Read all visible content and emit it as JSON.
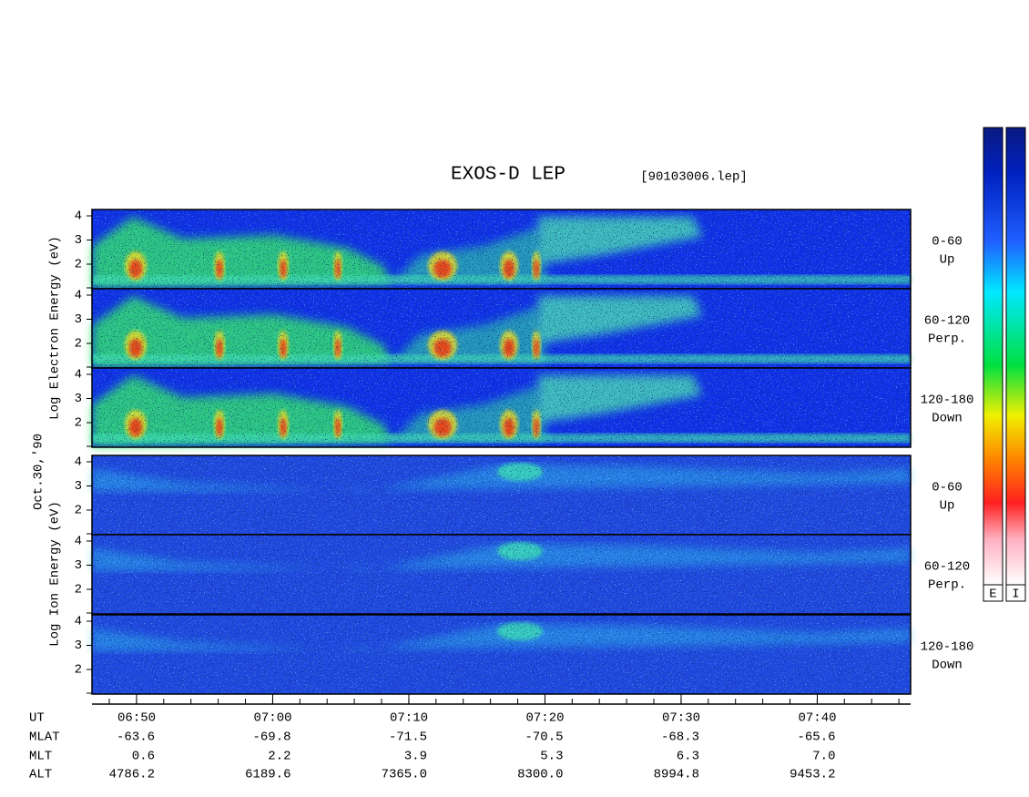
{
  "header": {
    "title": "EXOS-D LEP",
    "file": "[90103006.lep]"
  },
  "date_label": "Oct.30,'90",
  "energy_ticks": [
    4,
    3,
    2
  ],
  "electron": {
    "axis_label": "Log Electron Energy (eV)",
    "panels": [
      {
        "pitch": "0-60",
        "direction": "Up"
      },
      {
        "pitch": "60-120",
        "direction": "Perp."
      },
      {
        "pitch": "120-180",
        "direction": "Down"
      }
    ]
  },
  "ion": {
    "axis_label": "Log Ion Energy (eV)",
    "panels": [
      {
        "pitch": "0-60",
        "direction": "Up"
      },
      {
        "pitch": "60-120",
        "direction": "Perp."
      },
      {
        "pitch": "120-180",
        "direction": "Down"
      }
    ]
  },
  "time_axis": {
    "rows": [
      {
        "name": "UT",
        "values": [
          "06:50",
          "07:00",
          "07:10",
          "07:20",
          "07:30",
          "07:40"
        ]
      },
      {
        "name": "MLAT",
        "values": [
          "-63.6",
          "-69.8",
          "-71.5",
          "-70.5",
          "-68.3",
          "-65.6"
        ]
      },
      {
        "name": "MLT",
        "values": [
          "0.6",
          "2.2",
          "3.9",
          "5.3",
          "6.3",
          "7.0"
        ]
      },
      {
        "name": "ALT",
        "values": [
          "4786.2",
          "6189.6",
          "7365.0",
          "8300.0",
          "8994.8",
          "9453.2"
        ]
      }
    ]
  },
  "colorbar": {
    "labels": [
      "E",
      "I"
    ]
  }
}
